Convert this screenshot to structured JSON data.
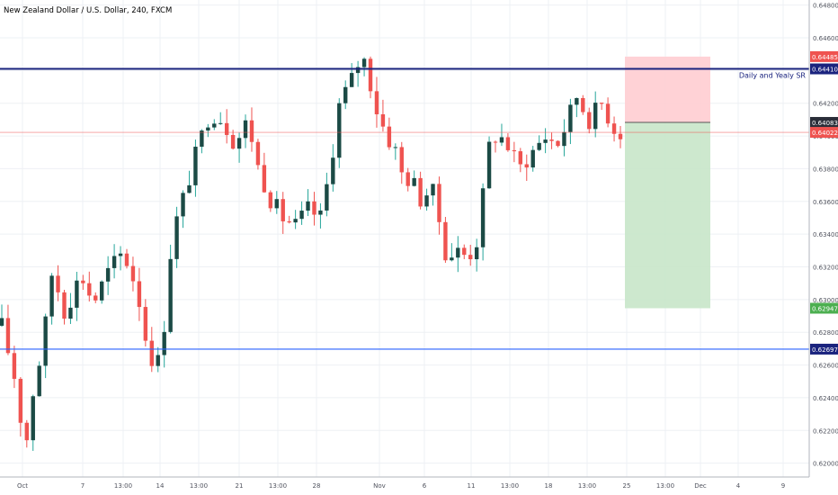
{
  "header": {
    "title": "New Zealand Dollar / U.S. Dollar, 240, FXCM"
  },
  "colors": {
    "up": "#26a69a",
    "up_body": "#1b4a45",
    "down": "#ef5350",
    "grid": "#eef0f4",
    "axis_text": "#50535e",
    "sr_line": "#2962ff",
    "sr_line_dark": "#1a237e",
    "last_price": "#ef5350",
    "stop_zone": "#ffcdd2",
    "target_zone": "#c8e6c9",
    "entry_label": "#2a2e39",
    "target_label": "#4caf50"
  },
  "chart_data": {
    "type": "candlestick",
    "title": "New Zealand Dollar / U.S. Dollar, 240, FXCM",
    "x_tick_labels": [
      "Oct",
      "7",
      "13:00",
      "14",
      "13:00",
      "21",
      "13:00",
      "28",
      "Nov",
      "6",
      "11",
      "13:00",
      "18",
      "13:00",
      "25",
      "13:00",
      "Dec",
      "4",
      "9"
    ],
    "y_tick_labels": [
      "0.62000",
      "0.62200",
      "0.62400",
      "0.62600",
      "0.62800",
      "0.63000",
      "0.63200",
      "0.63400",
      "0.63600",
      "0.63800",
      "0.64000",
      "0.64200",
      "0.64400",
      "0.64600",
      "0.64800"
    ],
    "ylim": [
      0.6191,
      0.6482
    ],
    "grid": true,
    "series_anchors": [
      {
        "x": 0.0,
        "price": 0.6284
      },
      {
        "x": 2.5,
        "price": 0.6245
      },
      {
        "x": 3.6,
        "price": 0.6205
      },
      {
        "x": 5.0,
        "price": 0.6245
      },
      {
        "x": 6.5,
        "price": 0.6272
      },
      {
        "x": 8.0,
        "price": 0.6318
      },
      {
        "x": 10.0,
        "price": 0.6292
      },
      {
        "x": 12.5,
        "price": 0.6316
      },
      {
        "x": 14.5,
        "price": 0.6298
      },
      {
        "x": 17.0,
        "price": 0.6318
      },
      {
        "x": 19.0,
        "price": 0.6328
      },
      {
        "x": 20.0,
        "price": 0.6322
      },
      {
        "x": 21.5,
        "price": 0.6305
      },
      {
        "x": 23.0,
        "price": 0.6272
      },
      {
        "x": 24.5,
        "price": 0.6258
      },
      {
        "x": 25.5,
        "price": 0.6275
      },
      {
        "x": 27.0,
        "price": 0.634
      },
      {
        "x": 29.0,
        "price": 0.6365
      },
      {
        "x": 31.0,
        "price": 0.6392
      },
      {
        "x": 33.0,
        "price": 0.6415
      },
      {
        "x": 35.0,
        "price": 0.641
      },
      {
        "x": 37.0,
        "price": 0.6395
      },
      {
        "x": 39.0,
        "price": 0.641
      },
      {
        "x": 40.5,
        "price": 0.6382
      },
      {
        "x": 42.5,
        "price": 0.6362
      },
      {
        "x": 44.5,
        "price": 0.635
      },
      {
        "x": 46.5,
        "price": 0.6345
      },
      {
        "x": 48.5,
        "price": 0.6355
      },
      {
        "x": 50.5,
        "price": 0.635
      },
      {
        "x": 52.0,
        "price": 0.638
      },
      {
        "x": 53.5,
        "price": 0.642
      },
      {
        "x": 55.5,
        "price": 0.6435
      },
      {
        "x": 57.0,
        "price": 0.645
      },
      {
        "x": 58.0,
        "price": 0.644
      },
      {
        "x": 59.0,
        "price": 0.642
      },
      {
        "x": 61.0,
        "price": 0.64
      },
      {
        "x": 62.5,
        "price": 0.639
      },
      {
        "x": 63.5,
        "price": 0.6375
      },
      {
        "x": 65.0,
        "price": 0.6373
      },
      {
        "x": 66.5,
        "price": 0.636
      },
      {
        "x": 68.0,
        "price": 0.637
      },
      {
        "x": 69.5,
        "price": 0.6345
      },
      {
        "x": 70.5,
        "price": 0.6325
      },
      {
        "x": 72.0,
        "price": 0.633
      },
      {
        "x": 73.5,
        "price": 0.6327
      },
      {
        "x": 75.0,
        "price": 0.633
      },
      {
        "x": 76.0,
        "price": 0.6355
      },
      {
        "x": 77.0,
        "price": 0.6392
      },
      {
        "x": 78.5,
        "price": 0.6402
      },
      {
        "x": 80.0,
        "price": 0.6395
      },
      {
        "x": 82.0,
        "price": 0.638
      },
      {
        "x": 84.0,
        "price": 0.639
      },
      {
        "x": 86.0,
        "price": 0.64
      },
      {
        "x": 88.0,
        "price": 0.6395
      },
      {
        "x": 89.5,
        "price": 0.6408
      },
      {
        "x": 91.0,
        "price": 0.6425
      },
      {
        "x": 93.0,
        "price": 0.641
      },
      {
        "x": 95.0,
        "price": 0.642
      },
      {
        "x": 97.0,
        "price": 0.6405
      },
      {
        "x": 98.0,
        "price": 0.6402
      }
    ],
    "candle_count": 100,
    "horizontal_lines": [
      {
        "price": 0.6441,
        "label": "0.64410",
        "note": "Daily and Yealy SR"
      },
      {
        "price": 0.62697,
        "label": "0.62697"
      },
      {
        "price": 0.64022,
        "label": "0.64022"
      }
    ],
    "position": {
      "stop_price": 0.64485,
      "entry_price": 0.64083,
      "target_price": 0.62947,
      "stop_label": "0.64485",
      "entry_label": "0.64083",
      "target_label": "0.62947"
    }
  }
}
